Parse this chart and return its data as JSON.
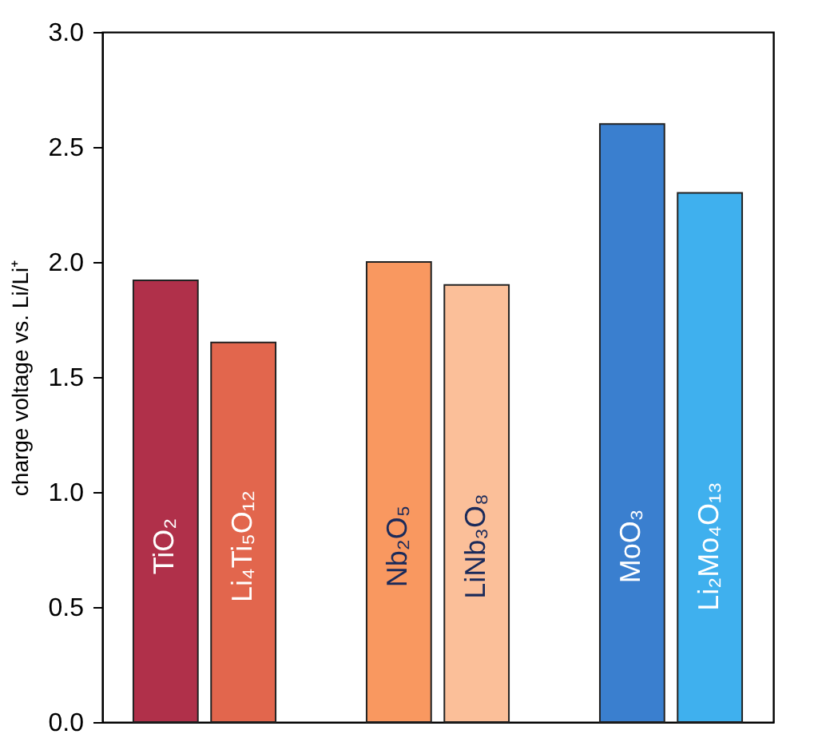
{
  "chart_data": {
    "type": "bar",
    "ylabel": "charge voltage  vs.  Li/Li⁺",
    "categories": [
      "TiO₂",
      "Li₄Ti₅O₁₂",
      null,
      "Nb₂O₅",
      "LiNb₃O₈",
      null,
      "MoO₃",
      "Li₂Mo₄O₁₃"
    ],
    "values": [
      1.92,
      1.65,
      null,
      2.0,
      1.9,
      null,
      2.6,
      2.3
    ],
    "colors": [
      "#b0304a",
      "#e2664d",
      "#ffffff",
      "#f99860",
      "#fbbf99",
      "#ffffff",
      "#3a7fcf",
      "#3fb0ee"
    ],
    "ylim": [
      0,
      3
    ],
    "yticks": [
      {
        "value": 0,
        "label": "0.0"
      },
      {
        "value": 0.5,
        "label": "0.5"
      },
      {
        "value": 1,
        "label": "1.0"
      },
      {
        "value": 1.5,
        "label": "1.5"
      },
      {
        "value": 2,
        "label": "2.0"
      },
      {
        "value": 2.5,
        "label": "2.5"
      },
      {
        "value": 3,
        "label": "3.0"
      }
    ],
    "tick_labels": "y",
    "grid": false
  }
}
